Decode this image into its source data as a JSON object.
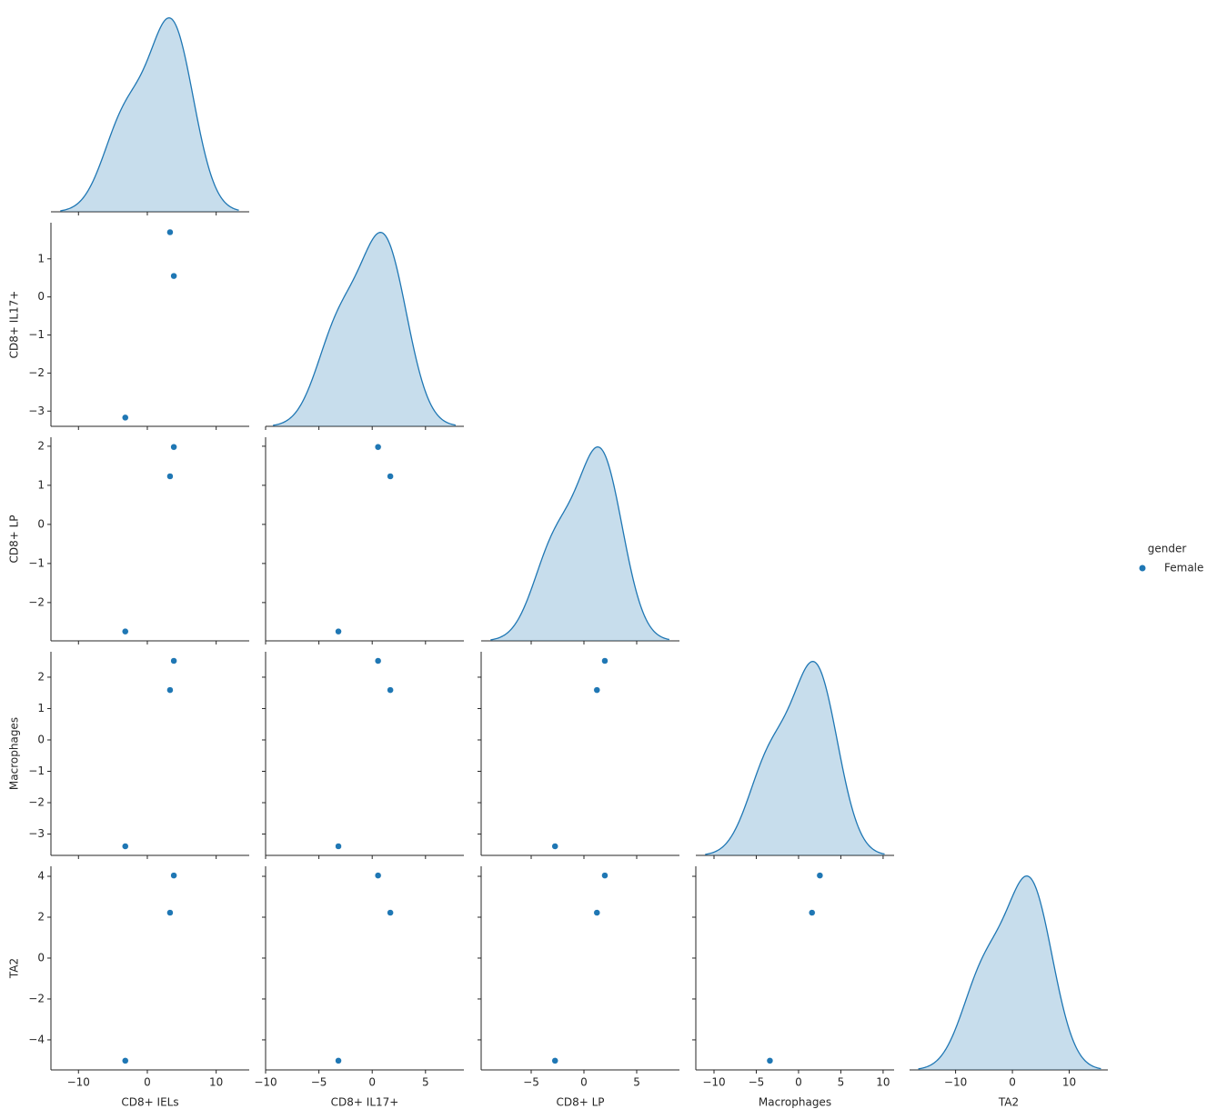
{
  "chart_data": {
    "type": "pairplot",
    "legend_title": "gender",
    "series": [
      {
        "name": "Female",
        "color": "#1f77b4"
      }
    ],
    "variables": [
      {
        "name": "CD8+ IELs",
        "values": [
          3.3,
          3.85,
          -3.2
        ],
        "xlim": [
          -14,
          14.8
        ],
        "xticks": [
          {
            "value": -10,
            "label": "−10"
          },
          0,
          10
        ]
      },
      {
        "name": "CD8+ IL17+",
        "values": [
          1.7,
          0.55,
          -3.17
        ],
        "xlim": [
          -10,
          8.6
        ],
        "xticks": [
          {
            "value": -10,
            "label": "−10"
          },
          {
            "value": -5,
            "label": "−5"
          },
          0,
          5
        ],
        "ylim": [
          -3.4,
          1.95
        ],
        "yticks": [
          {
            "value": -3,
            "label": "−3"
          },
          {
            "value": -2,
            "label": "−2"
          },
          {
            "value": -1,
            "label": "−1"
          },
          0,
          1
        ]
      },
      {
        "name": "CD8+ LP",
        "values": [
          1.23,
          1.98,
          -2.74
        ],
        "xlim": [
          -9.74,
          9.05
        ],
        "xticks": [
          {
            "value": -5,
            "label": "−5"
          },
          0,
          5
        ],
        "ylim": [
          -2.98,
          2.23
        ],
        "yticks": [
          {
            "value": -2,
            "label": "−2"
          },
          {
            "value": -1,
            "label": "−1"
          },
          0,
          1,
          2
        ]
      },
      {
        "name": "Macrophages",
        "values": [
          1.59,
          2.52,
          -3.39
        ],
        "xlim": [
          -12.15,
          11.3
        ],
        "xticks": [
          {
            "value": -10,
            "label": "−10"
          },
          {
            "value": -5,
            "label": "−5"
          },
          0,
          5,
          10
        ],
        "ylim": [
          -3.68,
          2.81
        ],
        "yticks": [
          {
            "value": -3,
            "label": "−3"
          },
          {
            "value": -2,
            "label": "−2"
          },
          {
            "value": -1,
            "label": "−1"
          },
          0,
          1,
          2
        ]
      },
      {
        "name": "TA2",
        "values": [
          2.22,
          4.04,
          -5.02
        ],
        "xlim": [
          -18.1,
          16.8
        ],
        "xticks": [
          {
            "value": -10,
            "label": "−10"
          },
          0,
          10
        ],
        "ylim": [
          -5.47,
          4.49
        ],
        "yticks": [
          {
            "value": -4,
            "label": "−4"
          },
          {
            "value": -2,
            "label": "−2"
          },
          0,
          2,
          4
        ]
      }
    ]
  }
}
